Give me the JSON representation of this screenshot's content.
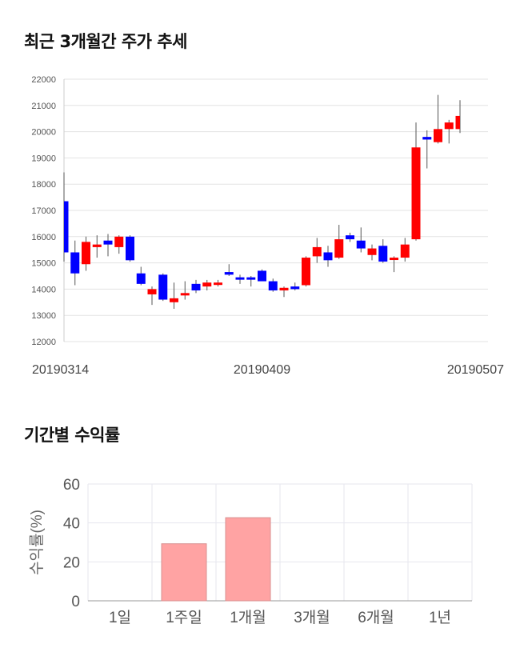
{
  "sections": {
    "price_title": "최근 3개월간 주가 추세",
    "returns_title": "기간별 수익률"
  },
  "chart_data": [
    {
      "type": "candlestick",
      "title": "최근 3개월간 주가 추세",
      "ylim": [
        12000,
        22000
      ],
      "yticks": [
        12000,
        13000,
        14000,
        15000,
        16000,
        17000,
        18000,
        19000,
        20000,
        21000,
        22000
      ],
      "xtick_labels": [
        {
          "label": "20190314",
          "index": 0
        },
        {
          "label": "20190409",
          "index": 18
        },
        {
          "label": "20190507",
          "index": 36
        }
      ],
      "grid": true,
      "up_color": "#ff0000",
      "down_color": "#0000ff",
      "candles": [
        {
          "open": 17350,
          "high": 18450,
          "low": 15050,
          "close": 15400
        },
        {
          "open": 15400,
          "high": 15850,
          "low": 14150,
          "close": 14600
        },
        {
          "open": 14950,
          "high": 16000,
          "low": 14700,
          "close": 15800
        },
        {
          "open": 15600,
          "high": 16050,
          "low": 15200,
          "close": 15700
        },
        {
          "open": 15850,
          "high": 16100,
          "low": 15250,
          "close": 15700
        },
        {
          "open": 15600,
          "high": 16050,
          "low": 15350,
          "close": 16000
        },
        {
          "open": 16000,
          "high": 16050,
          "low": 15050,
          "close": 15100
        },
        {
          "open": 14600,
          "high": 14850,
          "low": 14150,
          "close": 14200
        },
        {
          "open": 13800,
          "high": 14100,
          "low": 13400,
          "close": 14000
        },
        {
          "open": 14550,
          "high": 14600,
          "low": 13550,
          "close": 13600
        },
        {
          "open": 13500,
          "high": 14250,
          "low": 13250,
          "close": 13650
        },
        {
          "open": 13850,
          "high": 14300,
          "low": 13600,
          "close": 13850
        },
        {
          "open": 14200,
          "high": 14350,
          "low": 13850,
          "close": 13950
        },
        {
          "open": 14100,
          "high": 14350,
          "low": 13950,
          "close": 14250
        },
        {
          "open": 14200,
          "high": 14350,
          "low": 14100,
          "close": 14250
        },
        {
          "open": 14650,
          "high": 14950,
          "low": 14500,
          "close": 14550
        },
        {
          "open": 14450,
          "high": 14550,
          "low": 14200,
          "close": 14400
        },
        {
          "open": 14450,
          "high": 14500,
          "low": 14100,
          "close": 14400
        },
        {
          "open": 14700,
          "high": 14750,
          "low": 14300,
          "close": 14300
        },
        {
          "open": 14300,
          "high": 14400,
          "low": 13900,
          "close": 13950
        },
        {
          "open": 13950,
          "high": 14100,
          "low": 13700,
          "close": 14050
        },
        {
          "open": 14100,
          "high": 14250,
          "low": 13950,
          "close": 14000
        },
        {
          "open": 14150,
          "high": 15250,
          "low": 14100,
          "close": 15200
        },
        {
          "open": 15250,
          "high": 15950,
          "low": 15000,
          "close": 15600
        },
        {
          "open": 15400,
          "high": 15650,
          "low": 14850,
          "close": 15100
        },
        {
          "open": 15200,
          "high": 16450,
          "low": 15150,
          "close": 15900
        },
        {
          "open": 16050,
          "high": 16150,
          "low": 15800,
          "close": 15900
        },
        {
          "open": 15850,
          "high": 16350,
          "low": 15400,
          "close": 15550
        },
        {
          "open": 15300,
          "high": 15700,
          "low": 15100,
          "close": 15550
        },
        {
          "open": 15650,
          "high": 15900,
          "low": 15000,
          "close": 15050
        },
        {
          "open": 15150,
          "high": 15250,
          "low": 14650,
          "close": 15200
        },
        {
          "open": 15200,
          "high": 15950,
          "low": 15050,
          "close": 15700
        },
        {
          "open": 15900,
          "high": 20350,
          "low": 15850,
          "close": 19400
        },
        {
          "open": 19800,
          "high": 20050,
          "low": 18600,
          "close": 19700
        },
        {
          "open": 19600,
          "high": 21400,
          "low": 19550,
          "close": 20100
        },
        {
          "open": 20100,
          "high": 20450,
          "low": 19550,
          "close": 20350
        },
        {
          "open": 20100,
          "high": 21200,
          "low": 19950,
          "close": 20600
        }
      ]
    },
    {
      "type": "bar",
      "title": "기간별 수익률",
      "ylabel": "수익률(%)",
      "categories": [
        "1일",
        "1주일",
        "1개월",
        "3개월",
        "6개월",
        "1년"
      ],
      "values": [
        null,
        29.3,
        42.7,
        null,
        null,
        null
      ],
      "ylim": [
        0,
        60
      ],
      "yticks": [
        0,
        20,
        40,
        60
      ],
      "grid": true,
      "bar_color": "#ffa3a3",
      "bar_edge_color": "#d89090"
    }
  ]
}
